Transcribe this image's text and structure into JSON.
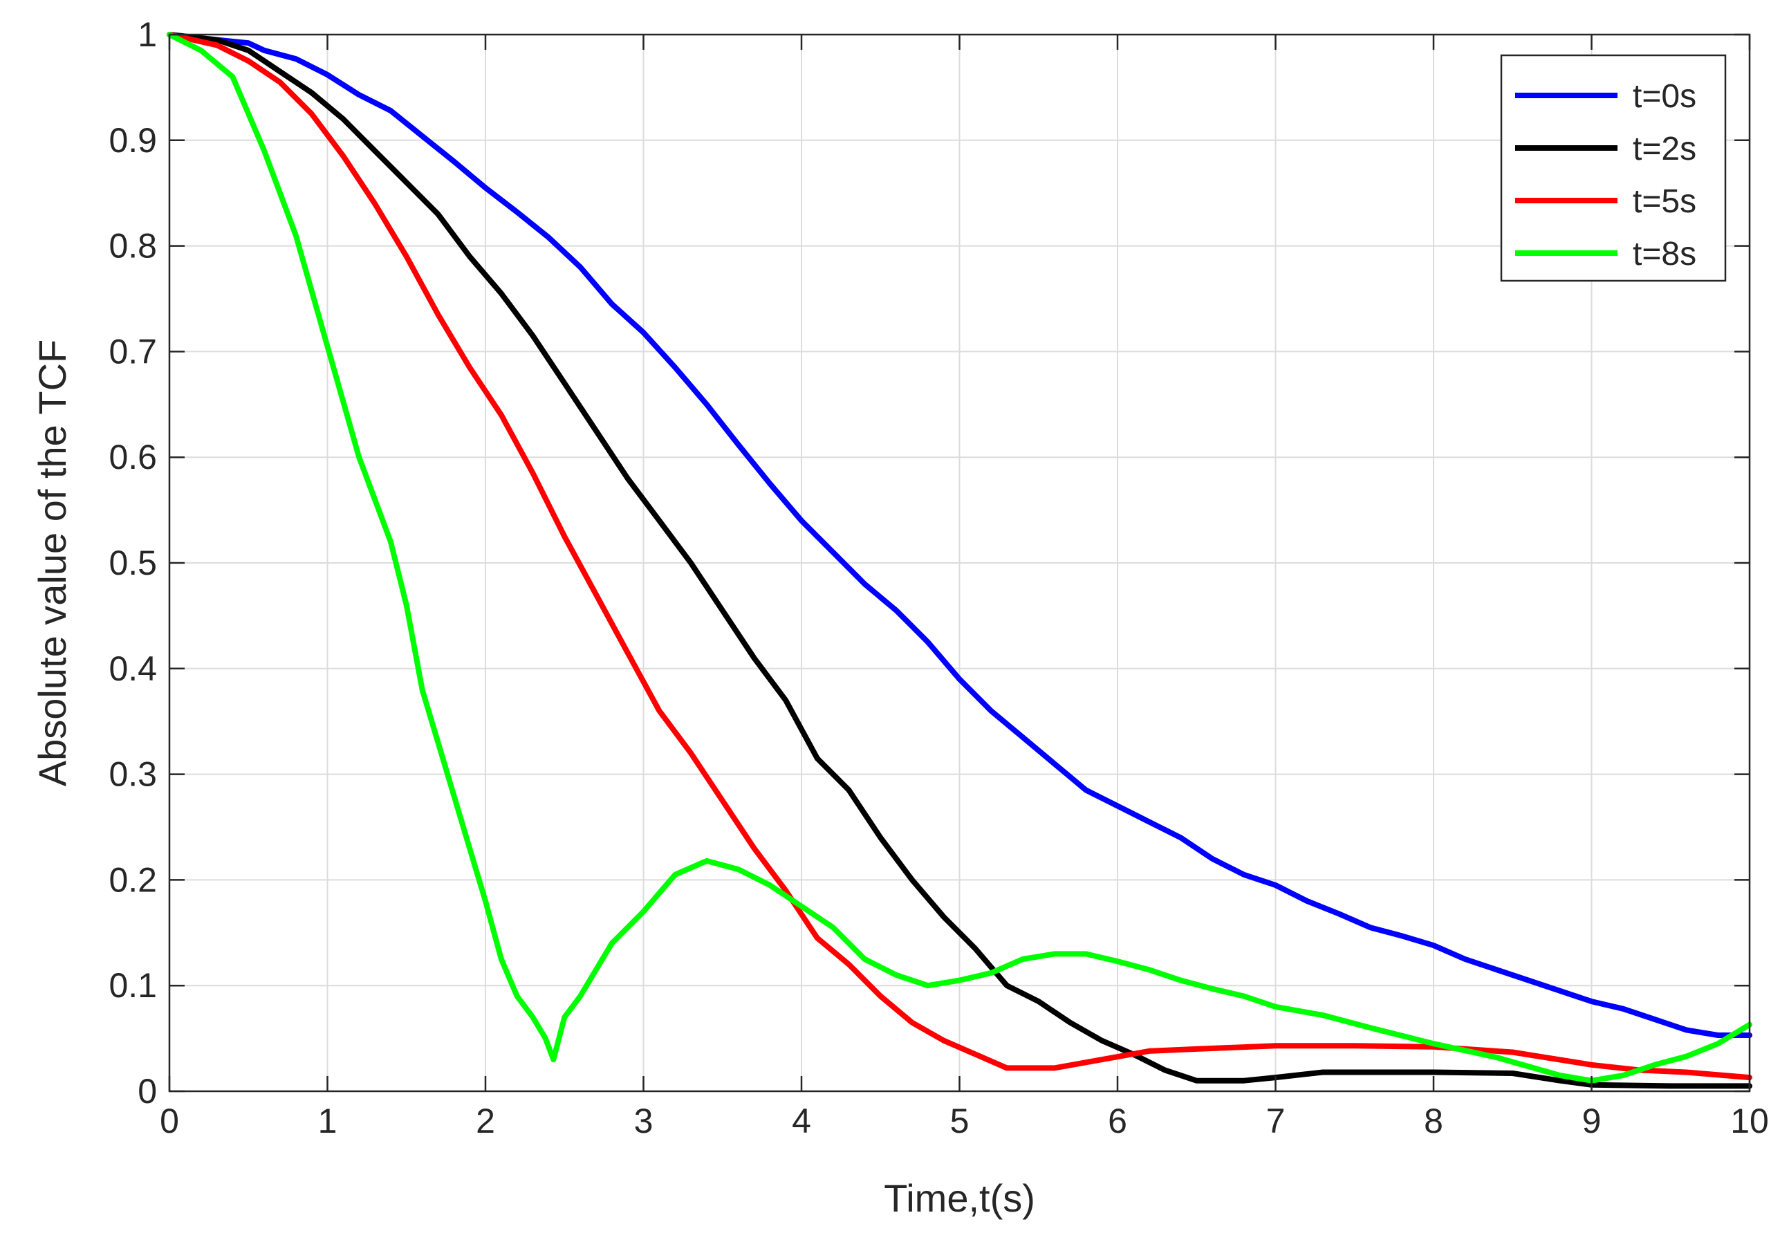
{
  "chart_data": {
    "type": "line",
    "title": "",
    "xlabel": "Time,t(s)",
    "ylabel": "Absolute value of the TCF",
    "xlim": [
      0,
      10
    ],
    "ylim": [
      0,
      1
    ],
    "xticks": [
      0,
      1,
      2,
      3,
      4,
      5,
      6,
      7,
      8,
      9,
      10
    ],
    "yticks": [
      0,
      0.1,
      0.2,
      0.3,
      0.4,
      0.5,
      0.6,
      0.7,
      0.8,
      0.9,
      1
    ],
    "xtick_labels": [
      "0",
      "1",
      "2",
      "3",
      "4",
      "5",
      "6",
      "7",
      "8",
      "9",
      "10"
    ],
    "ytick_labels": [
      "0",
      "0.1",
      "0.2",
      "0.3",
      "0.4",
      "0.5",
      "0.6",
      "0.7",
      "0.8",
      "0.9",
      "1"
    ],
    "grid": true,
    "legend_position": "top-right",
    "series": [
      {
        "name": "t=0s",
        "color": "#0000ff",
        "x": [
          0,
          0.3,
          0.5,
          0.6,
          0.8,
          1.0,
          1.2,
          1.4,
          1.6,
          1.8,
          2.0,
          2.2,
          2.4,
          2.6,
          2.8,
          3.0,
          3.2,
          3.4,
          3.6,
          3.8,
          4.0,
          4.2,
          4.4,
          4.6,
          4.8,
          5.0,
          5.2,
          5.4,
          5.6,
          5.8,
          6.0,
          6.2,
          6.4,
          6.6,
          6.8,
          7.0,
          7.2,
          7.4,
          7.6,
          7.8,
          8.0,
          8.2,
          8.4,
          8.6,
          8.8,
          9.0,
          9.2,
          9.4,
          9.6,
          9.8,
          10.0
        ],
        "y": [
          1.0,
          0.995,
          0.992,
          0.985,
          0.977,
          0.962,
          0.943,
          0.928,
          0.904,
          0.88,
          0.855,
          0.832,
          0.808,
          0.78,
          0.745,
          0.718,
          0.685,
          0.65,
          0.612,
          0.575,
          0.54,
          0.51,
          0.48,
          0.455,
          0.425,
          0.39,
          0.36,
          0.335,
          0.31,
          0.285,
          0.27,
          0.255,
          0.24,
          0.22,
          0.205,
          0.195,
          0.18,
          0.168,
          0.155,
          0.147,
          0.138,
          0.125,
          0.115,
          0.105,
          0.095,
          0.085,
          0.078,
          0.068,
          0.058,
          0.053,
          0.053
        ]
      },
      {
        "name": "t=2s",
        "color": "#000000",
        "x": [
          0,
          0.3,
          0.5,
          0.7,
          0.9,
          1.1,
          1.3,
          1.5,
          1.7,
          1.9,
          2.1,
          2.3,
          2.5,
          2.7,
          2.9,
          3.1,
          3.3,
          3.5,
          3.7,
          3.9,
          4.1,
          4.3,
          4.5,
          4.7,
          4.9,
          5.1,
          5.3,
          5.5,
          5.7,
          5.9,
          6.1,
          6.3,
          6.5,
          6.8,
          7.0,
          7.3,
          7.6,
          8.0,
          8.5,
          8.8,
          9.0,
          9.5,
          10.0
        ],
        "y": [
          1.0,
          0.995,
          0.985,
          0.965,
          0.945,
          0.92,
          0.89,
          0.86,
          0.83,
          0.79,
          0.755,
          0.715,
          0.67,
          0.625,
          0.58,
          0.54,
          0.5,
          0.455,
          0.41,
          0.37,
          0.315,
          0.285,
          0.24,
          0.2,
          0.165,
          0.135,
          0.1,
          0.085,
          0.065,
          0.048,
          0.035,
          0.02,
          0.01,
          0.01,
          0.013,
          0.018,
          0.018,
          0.018,
          0.017,
          0.01,
          0.006,
          0.005,
          0.005
        ]
      },
      {
        "name": "t=5s",
        "color": "#ff0000",
        "x": [
          0,
          0.3,
          0.5,
          0.7,
          0.9,
          1.1,
          1.3,
          1.5,
          1.7,
          1.9,
          2.1,
          2.3,
          2.5,
          2.7,
          2.9,
          3.1,
          3.3,
          3.5,
          3.7,
          3.9,
          4.1,
          4.3,
          4.5,
          4.7,
          4.9,
          5.1,
          5.3,
          5.6,
          5.9,
          6.2,
          6.5,
          7.0,
          7.5,
          8.0,
          8.5,
          9.0,
          9.3,
          9.6,
          10.0
        ],
        "y": [
          1.0,
          0.99,
          0.975,
          0.955,
          0.925,
          0.885,
          0.84,
          0.79,
          0.735,
          0.685,
          0.64,
          0.585,
          0.525,
          0.47,
          0.415,
          0.36,
          0.32,
          0.275,
          0.23,
          0.19,
          0.145,
          0.12,
          0.09,
          0.065,
          0.048,
          0.035,
          0.022,
          0.022,
          0.03,
          0.038,
          0.04,
          0.043,
          0.043,
          0.042,
          0.037,
          0.025,
          0.02,
          0.018,
          0.013
        ]
      },
      {
        "name": "t=8s",
        "color": "#00ff00",
        "x": [
          0,
          0.2,
          0.4,
          0.6,
          0.8,
          1.0,
          1.2,
          1.4,
          1.5,
          1.6,
          1.7,
          1.8,
          1.9,
          2.0,
          2.1,
          2.2,
          2.3,
          2.38,
          2.43,
          2.5,
          2.6,
          2.8,
          3.0,
          3.2,
          3.4,
          3.6,
          3.8,
          4.0,
          4.2,
          4.4,
          4.6,
          4.8,
          5.0,
          5.2,
          5.4,
          5.6,
          5.8,
          6.0,
          6.2,
          6.4,
          6.6,
          6.8,
          7.0,
          7.3,
          7.6,
          8.0,
          8.4,
          8.8,
          9.0,
          9.2,
          9.4,
          9.6,
          9.8,
          10.0
        ],
        "y": [
          1.0,
          0.985,
          0.96,
          0.89,
          0.81,
          0.705,
          0.6,
          0.52,
          0.46,
          0.38,
          0.33,
          0.28,
          0.23,
          0.18,
          0.125,
          0.09,
          0.07,
          0.05,
          0.03,
          0.07,
          0.09,
          0.14,
          0.17,
          0.205,
          0.218,
          0.21,
          0.195,
          0.175,
          0.155,
          0.125,
          0.11,
          0.1,
          0.105,
          0.112,
          0.125,
          0.13,
          0.13,
          0.123,
          0.115,
          0.105,
          0.097,
          0.09,
          0.08,
          0.072,
          0.06,
          0.045,
          0.032,
          0.015,
          0.01,
          0.015,
          0.025,
          0.033,
          0.045,
          0.063
        ]
      }
    ]
  }
}
